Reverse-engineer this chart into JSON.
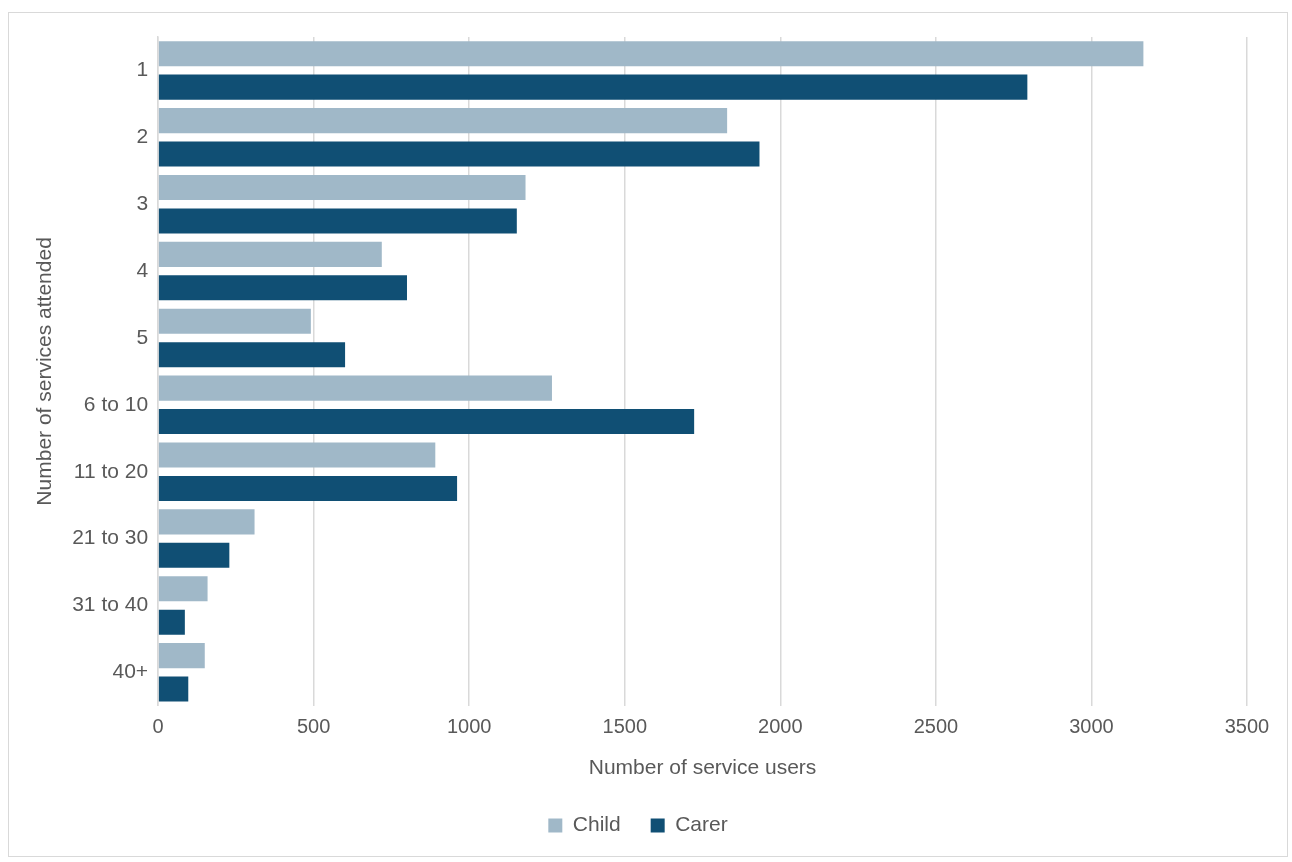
{
  "chart_data": {
    "type": "bar",
    "orientation": "horizontal",
    "xlabel": "Number of service users",
    "ylabel": "Number of services attended",
    "categories": [
      "1",
      "2",
      "3",
      "4",
      "5",
      "6 to 10",
      "11 to 20",
      "21 to 30",
      "31 to 40",
      "40+"
    ],
    "series": [
      {
        "name": "Child",
        "color": "#a0b8c8",
        "values": [
          3167,
          1829,
          1181,
          719,
          491,
          1266,
          891,
          310,
          159,
          150
        ]
      },
      {
        "name": "Carer",
        "color": "#104f74",
        "values": [
          2794,
          1933,
          1153,
          800,
          601,
          1723,
          961,
          229,
          86,
          97
        ]
      }
    ],
    "xlim": [
      0,
      3500
    ],
    "xticks": [
      0,
      500,
      1000,
      1500,
      2000,
      2500,
      3000,
      3500
    ],
    "grid": "x",
    "legend": "bottom"
  }
}
